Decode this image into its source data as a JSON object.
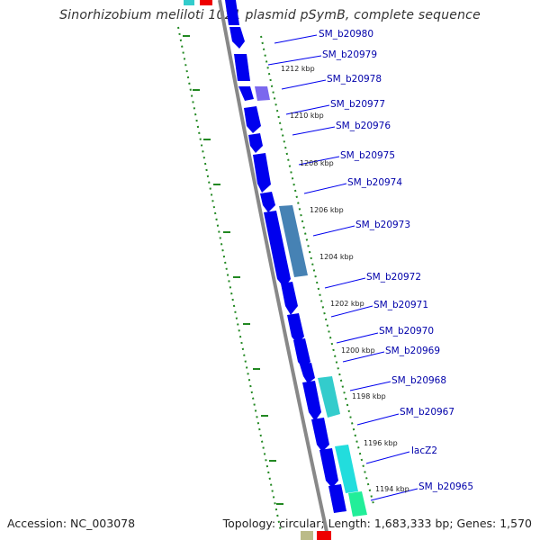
{
  "title": "Sinorhizobium meliloti 1021 plasmid pSymB, complete sequence",
  "footer": {
    "accession": "Accession: NC_003078",
    "summary": "Topology: circular; Length: 1,683,333 bp; Genes: 1,570"
  },
  "gene_labels": [
    {
      "id": "gl0",
      "text": "SM_b20980"
    },
    {
      "id": "gl1",
      "text": "SM_b20979"
    },
    {
      "id": "gl2",
      "text": "SM_b20978"
    },
    {
      "id": "gl3",
      "text": "SM_b20977"
    },
    {
      "id": "gl4",
      "text": "SM_b20976"
    },
    {
      "id": "gl5",
      "text": "SM_b20975"
    },
    {
      "id": "gl6",
      "text": "SM_b20974"
    },
    {
      "id": "gl7",
      "text": "SM_b20973"
    },
    {
      "id": "gl8",
      "text": "SM_b20972"
    },
    {
      "id": "gl9",
      "text": "SM_b20971"
    },
    {
      "id": "gl10",
      "text": "SM_b20970"
    },
    {
      "id": "gl11",
      "text": "SM_b20969"
    },
    {
      "id": "gl12",
      "text": "SM_b20968"
    },
    {
      "id": "gl13",
      "text": "SM_b20967"
    },
    {
      "id": "gl14",
      "text": "lacZ2"
    },
    {
      "id": "gl15",
      "text": "SM_b20965"
    }
  ],
  "kbp_labels": [
    "1212 kbp",
    "1210 kbp",
    "1208 kbp",
    "1206 kbp",
    "1204 kbp",
    "1202 kbp",
    "1200 kbp",
    "1198 kbp",
    "1196 kbp",
    "1194 kbp"
  ],
  "colors": {
    "gene_blue": "#0000ee",
    "gene_lavender": "#7b68ee",
    "gene_steelblue": "#4682b4",
    "gene_cyan": "#33cccc",
    "gene_aqua": "#22dddd",
    "gene_spring": "#22ee99",
    "gene_red": "#ee0000",
    "backbone": "#888888",
    "tick_green": "#228822",
    "label_blue": "#0000aa"
  }
}
